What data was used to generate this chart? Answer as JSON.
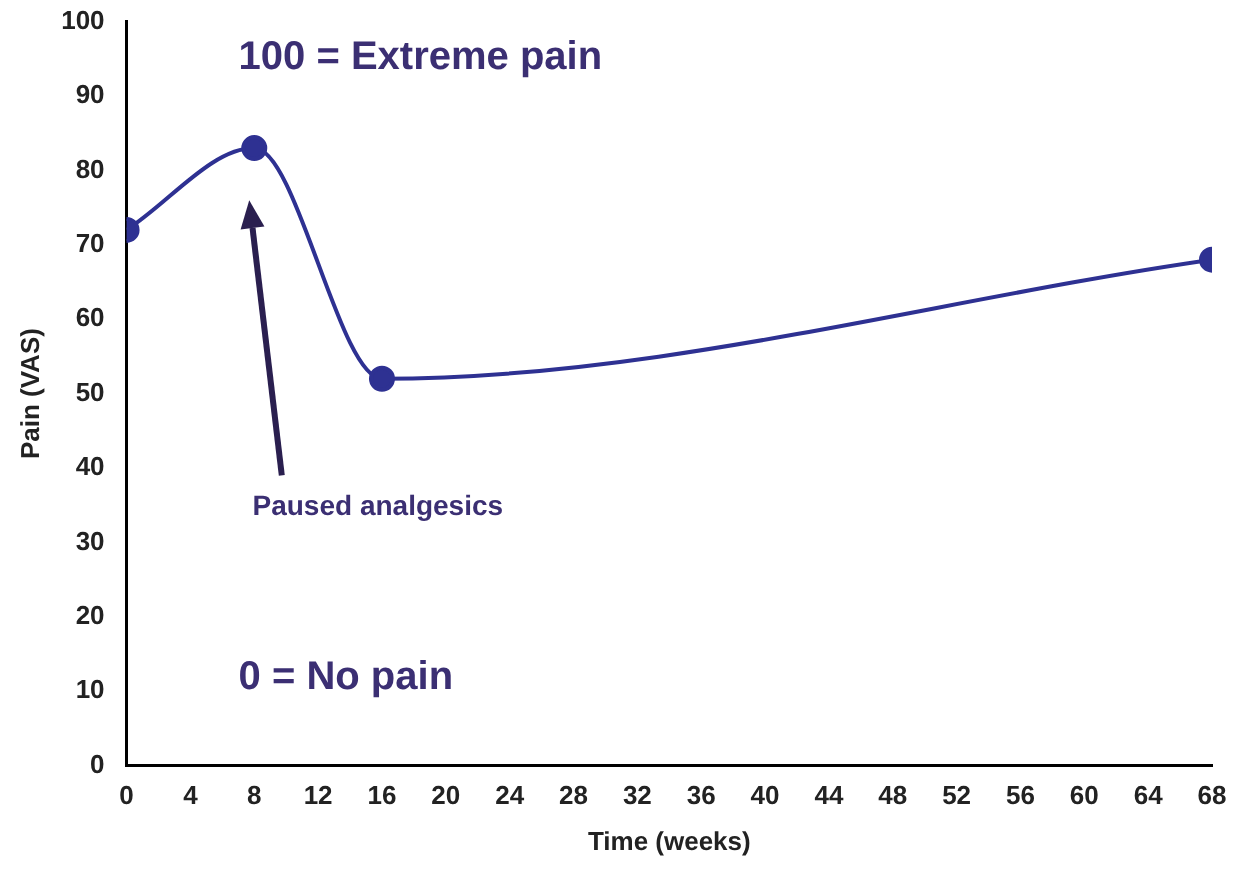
{
  "chart_data": {
    "type": "line",
    "xlabel": "Time (weeks)",
    "ylabel": "Pain (VAS)",
    "x": [
      0,
      8,
      16,
      68
    ],
    "series": [
      {
        "color": "#2e3192",
        "values": [
          72,
          83,
          52,
          68
        ]
      }
    ],
    "xlim": [
      0,
      68
    ],
    "xticks": [
      0,
      4,
      8,
      12,
      16,
      20,
      24,
      28,
      32,
      36,
      40,
      44,
      48,
      52,
      56,
      60,
      64,
      68
    ],
    "ylim": [
      0,
      100
    ],
    "yticks": [
      0,
      10,
      20,
      30,
      40,
      50,
      60,
      70,
      80,
      90,
      100
    ],
    "grid": false,
    "legend": false,
    "marker": "circle",
    "line_style": "solid",
    "annotations": [
      "100 = Extreme pain",
      "0 = No pain",
      "Paused analgesics"
    ]
  }
}
